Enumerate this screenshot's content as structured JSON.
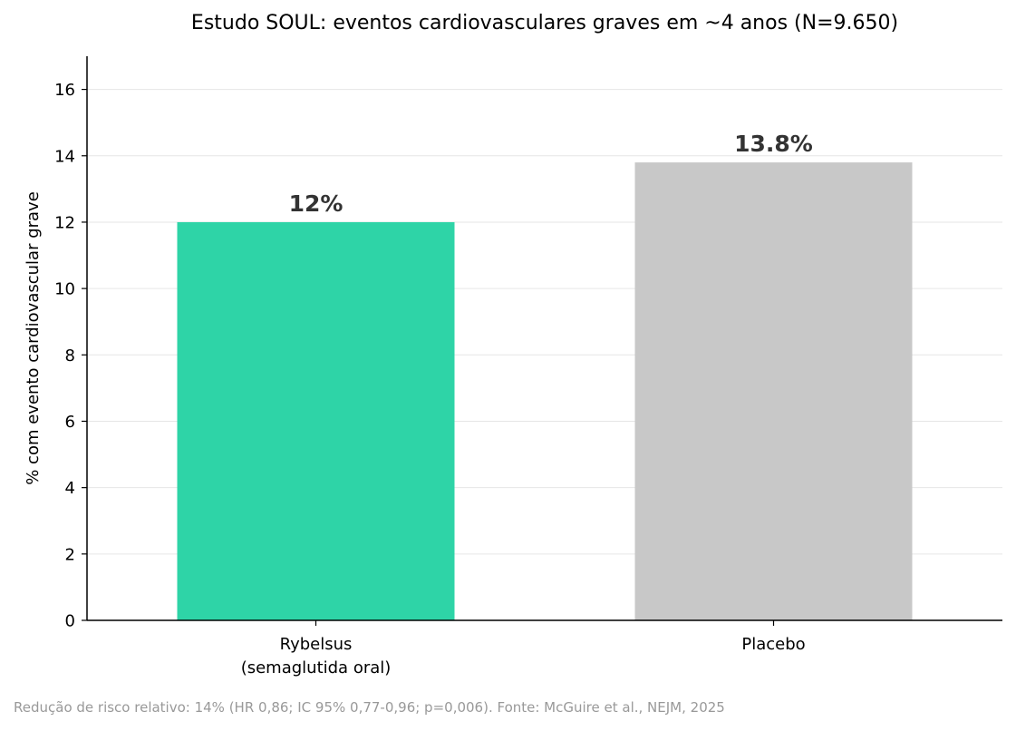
{
  "chart_data": {
    "type": "bar",
    "title": "Estudo SOUL: eventos cardiovasculares graves em ~4 anos (N=9.650)",
    "xlabel": "",
    "ylabel": "% com evento cardiovascular grave",
    "categories": [
      [
        "Rybelsus",
        "(semaglutida oral)"
      ],
      [
        "Placebo"
      ]
    ],
    "values": [
      12,
      13.8
    ],
    "value_labels": [
      "12%",
      "13.8%"
    ],
    "colors": [
      "#2ed4a7",
      "#c8c8c8"
    ],
    "ylim": [
      0,
      17
    ],
    "yticks": [
      0,
      2,
      4,
      6,
      8,
      10,
      12,
      14,
      16
    ],
    "grid": "horizontal"
  },
  "footnote": "Redução de risco relativo: 14% (HR 0,86; IC 95% 0,77-0,96; p=0,006). Fonte: McGuire et al., NEJM, 2025"
}
